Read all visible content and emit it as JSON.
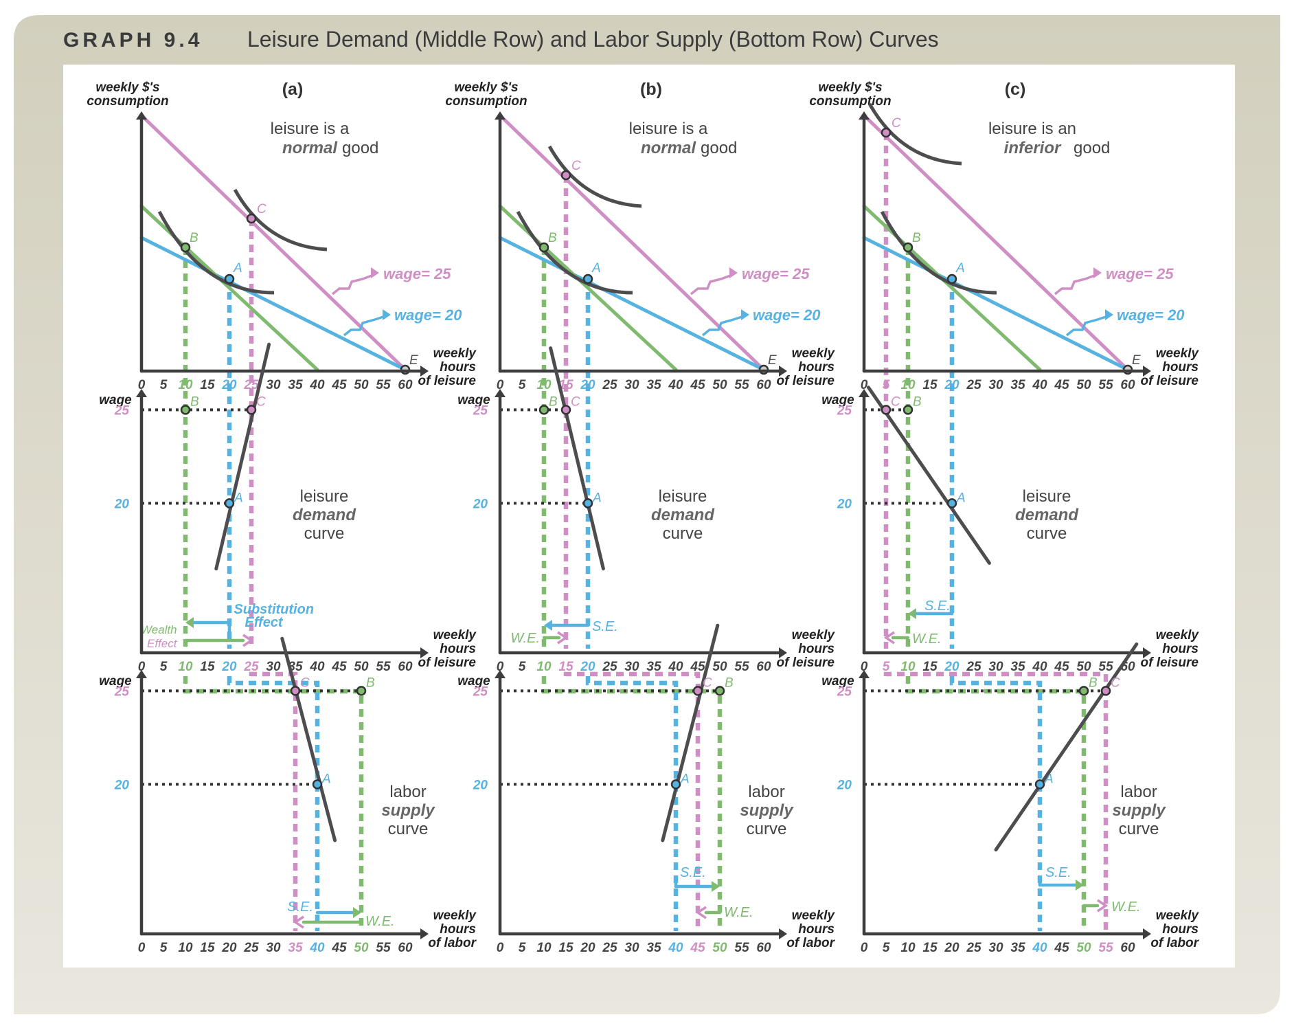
{
  "title": {
    "label": "GRAPH 9.4",
    "text": "Leisure Demand (Middle Row) and Labor Supply (Bottom Row) Curves"
  },
  "colors": {
    "pink": "#cf8fc4",
    "blue": "#55b2e1",
    "green": "#7fba6f",
    "dark": "#4d4d4f",
    "panel_bg": "#ffffff",
    "frame_bg": "#d8d6c9"
  },
  "common": {
    "y_top": "weekly $'s",
    "y_top2": "consumption",
    "x_top": [
      "weekly",
      "hours",
      "of leisure"
    ],
    "y_wage": "wage",
    "x_mid": [
      "weekly",
      "hours",
      "of leisure"
    ],
    "x_bot": [
      "weekly",
      "hours",
      "of labor"
    ],
    "wage_ticks": [
      "20",
      "25"
    ],
    "wage_label_20": "wage= 20",
    "wage_label_25": "wage= 25",
    "mid_desc": [
      "leisure",
      "demand",
      "curve"
    ],
    "bot_desc": [
      "labor",
      "supply",
      "curve"
    ],
    "point_A": "A",
    "point_B": "B",
    "point_C": "C",
    "point_E": "E",
    "se": "S.E.",
    "we": "W.E."
  },
  "panels": [
    {
      "tag": "(a)",
      "top_desc": [
        "leisure is a",
        "normal",
        "good"
      ],
      "subst_label": [
        "Substitution",
        "Effect"
      ],
      "wealth_label": [
        "Wealth",
        "Effect"
      ],
      "top_x_ticks": [
        "0",
        "5",
        "10",
        "15",
        "20",
        "25",
        "30",
        "35",
        "40",
        "45",
        "50",
        "55",
        "60"
      ],
      "mid_x_ticks": [
        "0",
        "5",
        "10",
        "15",
        "20",
        "25",
        "30",
        "35",
        "40",
        "45",
        "50",
        "55",
        "60"
      ],
      "bot_x_ticks": [
        "0",
        "5",
        "10",
        "15",
        "20",
        "25",
        "30",
        "35",
        "40",
        "45",
        "50",
        "55",
        "60"
      ]
    },
    {
      "tag": "(b)",
      "top_desc": [
        "leisure is a",
        "normal",
        "good"
      ],
      "top_x_ticks": [
        "0",
        "5",
        "10",
        "15",
        "20",
        "25",
        "30",
        "35",
        "40",
        "45",
        "50",
        "55",
        "60"
      ],
      "mid_x_ticks": [
        "0",
        "5",
        "10",
        "15",
        "20",
        "25",
        "30",
        "35",
        "40",
        "45",
        "50",
        "55",
        "60"
      ],
      "bot_x_ticks": [
        "0",
        "5",
        "10",
        "15",
        "20",
        "25",
        "30",
        "35",
        "40",
        "45",
        "50",
        "55",
        "60"
      ]
    },
    {
      "tag": "(c)",
      "top_desc": [
        "leisure is an",
        "inferior",
        "good"
      ],
      "top_x_ticks": [
        "0",
        "5",
        "10",
        "15",
        "20",
        "25",
        "30",
        "35",
        "40",
        "45",
        "50",
        "55",
        "60"
      ],
      "mid_x_ticks": [
        "0",
        "5",
        "10",
        "15",
        "20",
        "25",
        "30",
        "35",
        "40",
        "45",
        "50",
        "55",
        "60"
      ],
      "bot_x_ticks": [
        "0",
        "5",
        "10",
        "15",
        "20",
        "25",
        "30",
        "35",
        "40",
        "45",
        "50",
        "55",
        "60"
      ]
    }
  ],
  "chart_data": [
    {
      "type": "line",
      "panel": "(a)",
      "row": "top",
      "xlim": [
        0,
        60
      ],
      "x_ticks": [
        0,
        5,
        10,
        15,
        20,
        25,
        30,
        35,
        40,
        45,
        50,
        55,
        60
      ],
      "series": [
        {
          "name": "wage= 20",
          "x": [
            0,
            60
          ],
          "y": [
            1200,
            0
          ]
        },
        {
          "name": "wage= 25",
          "x": [
            0,
            60
          ],
          "y": [
            1500,
            0
          ]
        }
      ],
      "points": [
        {
          "label": "A",
          "x": 20
        },
        {
          "label": "B",
          "x": 10
        },
        {
          "label": "C",
          "x": 25
        },
        {
          "label": "E",
          "x": 60
        }
      ]
    },
    {
      "type": "line",
      "panel": "(b)",
      "row": "top",
      "xlim": [
        0,
        60
      ],
      "x_ticks": [
        0,
        5,
        10,
        15,
        20,
        25,
        30,
        35,
        40,
        45,
        50,
        55,
        60
      ],
      "series": [
        {
          "name": "wage= 20",
          "x": [
            0,
            60
          ],
          "y": [
            1200,
            0
          ]
        },
        {
          "name": "wage= 25",
          "x": [
            0,
            60
          ],
          "y": [
            1500,
            0
          ]
        }
      ],
      "points": [
        {
          "label": "A",
          "x": 20
        },
        {
          "label": "B",
          "x": 10
        },
        {
          "label": "C",
          "x": 15
        },
        {
          "label": "E",
          "x": 60
        }
      ]
    },
    {
      "type": "line",
      "panel": "(c)",
      "row": "top",
      "xlim": [
        0,
        60
      ],
      "x_ticks": [
        0,
        5,
        10,
        15,
        20,
        25,
        30,
        35,
        40,
        45,
        50,
        55,
        60
      ],
      "series": [
        {
          "name": "wage= 20",
          "x": [
            0,
            60
          ],
          "y": [
            1200,
            0
          ]
        },
        {
          "name": "wage= 25",
          "x": [
            0,
            60
          ],
          "y": [
            1500,
            0
          ]
        }
      ],
      "points": [
        {
          "label": "A",
          "x": 20
        },
        {
          "label": "B",
          "x": 10
        },
        {
          "label": "C",
          "x": 5
        },
        {
          "label": "E",
          "x": 60
        }
      ]
    },
    {
      "type": "line",
      "panel": "(a)",
      "row": "middle",
      "xlim": [
        0,
        60
      ],
      "series": [
        {
          "x": [
            17,
            29
          ],
          "y": [
            16.5,
            28.5
          ]
        }
      ],
      "points": [
        {
          "label": "A",
          "x": 20,
          "y": 20
        },
        {
          "label": "B",
          "x": 10,
          "y": 25
        },
        {
          "label": "C",
          "x": 25,
          "y": 25
        }
      ]
    },
    {
      "type": "line",
      "panel": "(b)",
      "row": "middle",
      "xlim": [
        0,
        60
      ],
      "series": [
        {
          "x": [
            11.5,
            23.5
          ],
          "y": [
            28.3,
            16.5
          ]
        }
      ],
      "points": [
        {
          "label": "A",
          "x": 20,
          "y": 20
        },
        {
          "label": "B",
          "x": 10,
          "y": 25
        },
        {
          "label": "C",
          "x": 15,
          "y": 25
        }
      ]
    },
    {
      "type": "line",
      "panel": "(c)",
      "row": "middle",
      "xlim": [
        0,
        60
      ],
      "series": [
        {
          "x": [
            1,
            28.5
          ],
          "y": [
            26.2,
            16.8
          ]
        }
      ],
      "points": [
        {
          "label": "A",
          "x": 20,
          "y": 20
        },
        {
          "label": "B",
          "x": 10,
          "y": 25
        },
        {
          "label": "C",
          "x": 5,
          "y": 25
        }
      ]
    },
    {
      "type": "line",
      "panel": "(a)",
      "row": "bottom",
      "xlim": [
        0,
        60
      ],
      "series": [
        {
          "x": [
            32,
            44
          ],
          "y": [
            27.8,
            17
          ]
        }
      ],
      "points": [
        {
          "label": "A",
          "x": 40,
          "y": 20
        },
        {
          "label": "B",
          "x": 50,
          "y": 25
        },
        {
          "label": "C",
          "x": 35,
          "y": 25
        }
      ]
    },
    {
      "type": "line",
      "panel": "(b)",
      "row": "bottom",
      "xlim": [
        0,
        60
      ],
      "series": [
        {
          "x": [
            37,
            49.5
          ],
          "y": [
            17,
            28.5
          ]
        }
      ],
      "points": [
        {
          "label": "A",
          "x": 40,
          "y": 20
        },
        {
          "label": "B",
          "x": 50,
          "y": 25
        },
        {
          "label": "C",
          "x": 45,
          "y": 25
        }
      ]
    },
    {
      "type": "line",
      "panel": "(c)",
      "row": "bottom",
      "xlim": [
        0,
        60
      ],
      "series": [
        {
          "x": [
            30,
            62
          ],
          "y": [
            16.5,
            27.5
          ]
        }
      ],
      "points": [
        {
          "label": "A",
          "x": 40,
          "y": 20
        },
        {
          "label": "B",
          "x": 50,
          "y": 25
        },
        {
          "label": "C",
          "x": 55,
          "y": 25
        }
      ]
    }
  ]
}
